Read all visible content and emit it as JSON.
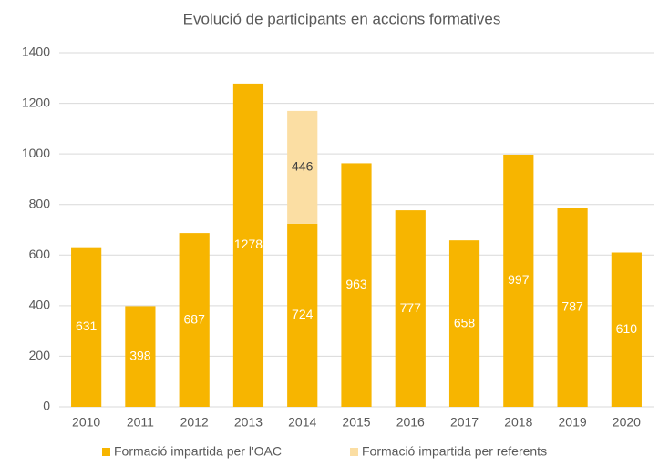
{
  "chart_data": {
    "type": "stacked_bar",
    "title": "Evolució de participants en accions formatives",
    "categories": [
      "2010",
      "2011",
      "2012",
      "2013",
      "2014",
      "2015",
      "2016",
      "2017",
      "2018",
      "2019",
      "2020"
    ],
    "series": [
      {
        "name": "Formació impartida per l'OAC",
        "color": "#f7b500",
        "values": [
          631,
          398,
          687,
          1278,
          724,
          963,
          777,
          658,
          997,
          787,
          610
        ]
      },
      {
        "name": "Formació impartida per referents",
        "color": "#fbdea3",
        "values": [
          null,
          null,
          null,
          null,
          446,
          null,
          null,
          null,
          null,
          null,
          null
        ]
      }
    ],
    "ylim": [
      0,
      1400
    ],
    "yticks": [
      0,
      200,
      400,
      600,
      800,
      1000,
      1200,
      1400
    ],
    "grid": true,
    "legend": "bottom"
  }
}
